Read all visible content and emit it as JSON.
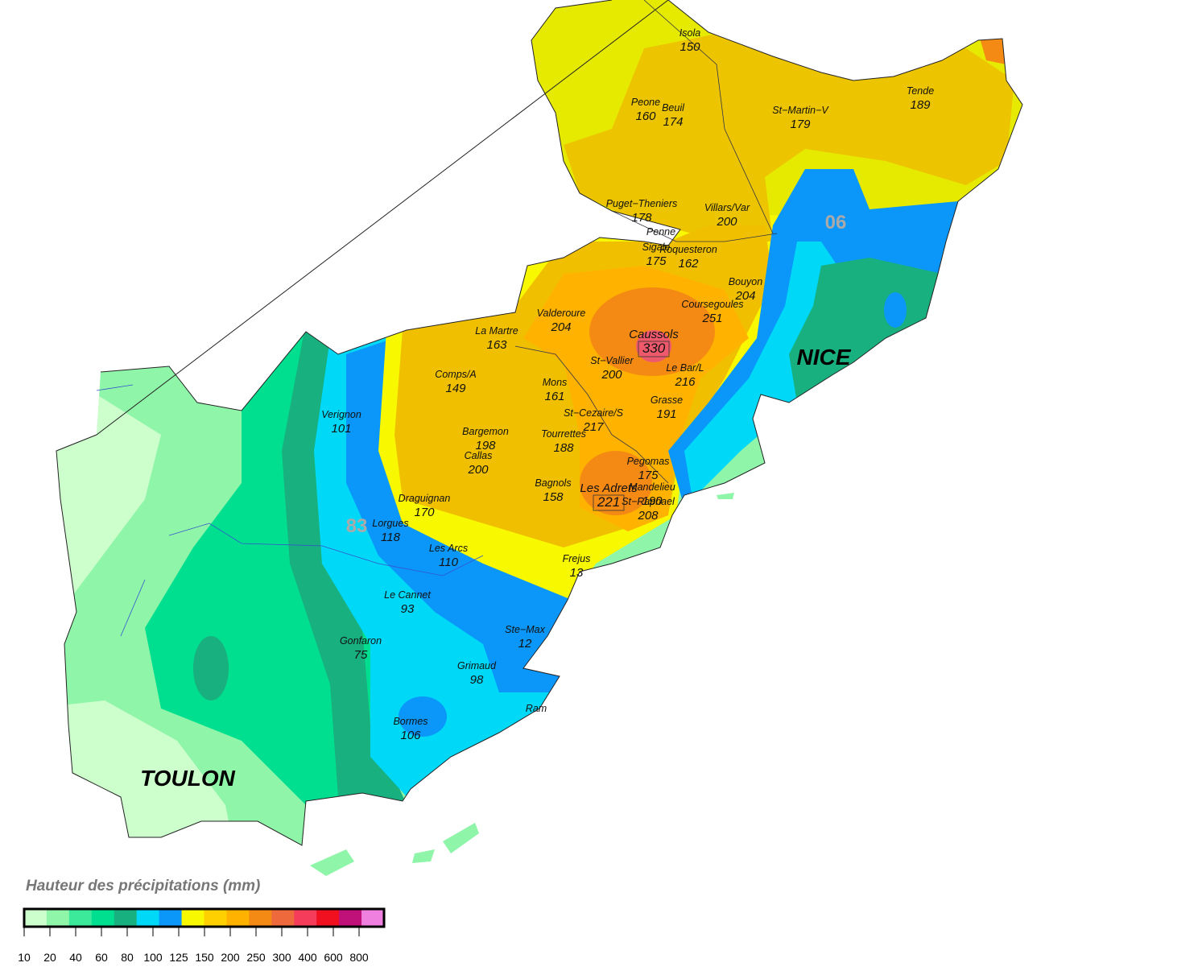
{
  "legend": {
    "title": "Hauteur des précipitations (mm)",
    "colors": [
      "#ccffcc",
      "#8ff5a8",
      "#3ce89a",
      "#00df8f",
      "#18b07e",
      "#00d8f8",
      "#0b96fa",
      "#f8f800",
      "#ffd000",
      "#ffb300",
      "#f48a14",
      "#ee6a3c",
      "#f53c5a",
      "#f01020",
      "#c0107a",
      "#f080e0"
    ],
    "ticks": [
      10,
      20,
      40,
      60,
      80,
      100,
      125,
      150,
      200,
      250,
      300,
      400,
      600,
      800
    ]
  },
  "cities": [
    "TOULON",
    "NICE"
  ],
  "departments": [
    "83",
    "06"
  ],
  "stations": [
    {
      "name": "Isola",
      "value": 150
    },
    {
      "name": "Peone",
      "value": 160
    },
    {
      "name": "Beuil",
      "value": 174
    },
    {
      "name": "St−Martin−V",
      "value": 179
    },
    {
      "name": "Tende",
      "value": 189
    },
    {
      "name": "Puget−Theniers",
      "value": 178
    },
    {
      "name": "Villars/Var",
      "value": 200
    },
    {
      "name": "Penne"
    },
    {
      "name": "Sigale",
      "value": 175
    },
    {
      "name": "Roquesteron",
      "value": 162
    },
    {
      "name": "Bouyon",
      "value": 204
    },
    {
      "name": "Coursegoules",
      "value": 251
    },
    {
      "name": "Valderoure",
      "value": 204
    },
    {
      "name": "La Martre",
      "value": 163
    },
    {
      "name": "Caussols",
      "value": 330
    },
    {
      "name": "St−Vallier",
      "value": 200
    },
    {
      "name": "Le Bar/L",
      "value": 216
    },
    {
      "name": "Comps/A",
      "value": 149
    },
    {
      "name": "Mons",
      "value": 161
    },
    {
      "name": "Grasse",
      "value": 191
    },
    {
      "name": "Verignon",
      "value": 101
    },
    {
      "name": "St−Cezaire/S",
      "value": 217
    },
    {
      "name": "Bargemon",
      "value": 198
    },
    {
      "name": "Tourrettes",
      "value": 188
    },
    {
      "name": "Callas",
      "value": 200
    },
    {
      "name": "Pegomas",
      "value": 175
    },
    {
      "name": "Bagnols",
      "value": 158
    },
    {
      "name": "Les Adrets",
      "value": 221
    },
    {
      "name": "Mandelieu",
      "value": 190
    },
    {
      "name": "St−Raphael",
      "value": 208
    },
    {
      "name": "Draguignan",
      "value": 170
    },
    {
      "name": "Lorgues",
      "value": 118
    },
    {
      "name": "Les Arcs",
      "value": 110
    },
    {
      "name": "Frejus",
      "value": 13
    },
    {
      "name": "Le Cannet",
      "value": 93
    },
    {
      "name": "Ste−Max",
      "value": 12
    },
    {
      "name": "Gonfaron",
      "value": 75
    },
    {
      "name": "Grimaud",
      "value": 98
    },
    {
      "name": "Ram"
    },
    {
      "name": "Bormes",
      "value": 106
    }
  ]
}
